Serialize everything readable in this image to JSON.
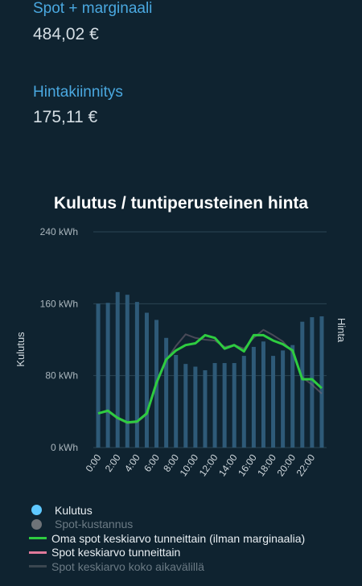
{
  "summary": [
    {
      "label": "Spot + marginaali",
      "value": "484,02 €"
    },
    {
      "label": "Hintakiinnitys",
      "value": "175,11 €"
    }
  ],
  "colors": {
    "background": "#0f2330",
    "label_blue": "#4aa8e0",
    "bar": "#2e5a78",
    "own_spot_line": "#2ecc40",
    "spot_line": "#e07a9a",
    "grid": "#2b4453"
  },
  "chart_data": {
    "type": "bar",
    "title": "Kulutus / tuntiperusteinen hinta",
    "ylabel": "Kulutus",
    "y2label": "Hinta",
    "ylim": [
      0,
      240
    ],
    "y_ticks": [
      "0 kWh",
      "80 kWh",
      "160 kWh",
      "240 kWh"
    ],
    "y_tick_values": [
      0,
      80,
      160,
      240
    ],
    "x_tick_labels": [
      "0:00",
      "2:00",
      "4:00",
      "6:00",
      "8:00",
      "10:00",
      "12:00",
      "14:00",
      "16:00",
      "18:00",
      "20:00",
      "22:00"
    ],
    "categories": [
      "0:00",
      "1:00",
      "2:00",
      "3:00",
      "4:00",
      "5:00",
      "6:00",
      "7:00",
      "8:00",
      "9:00",
      "10:00",
      "11:00",
      "12:00",
      "13:00",
      "14:00",
      "15:00",
      "16:00",
      "17:00",
      "18:00",
      "19:00",
      "20:00",
      "21:00",
      "22:00",
      "23:00"
    ],
    "series": [
      {
        "name": "Kulutus",
        "type": "bar",
        "values": [
          160,
          161,
          173,
          170,
          162,
          150,
          142,
          122,
          103,
          93,
          90,
          86,
          94,
          94,
          94,
          102,
          112,
          118,
          102,
          108,
          114,
          140,
          145,
          146
        ]
      },
      {
        "name": "Oma spot keskiarvo tunneittain (ilman marginaalia)",
        "type": "line",
        "values": [
          38,
          41,
          33,
          28,
          29,
          38,
          72,
          98,
          108,
          114,
          116,
          125,
          122,
          110,
          114,
          107,
          125,
          125,
          119,
          115,
          108,
          76,
          76,
          66
        ]
      },
      {
        "name": "Spot keskiarvo tunneittain",
        "type": "line",
        "values": [
          38,
          40,
          32,
          27,
          28,
          37,
          71,
          97,
          113,
          126,
          122,
          120,
          119,
          112,
          114,
          110,
          122,
          131,
          125,
          118,
          106,
          78,
          70,
          60
        ]
      }
    ],
    "legend": [
      {
        "name": "Kulutus",
        "kind": "dot",
        "color": "#5ec8ff",
        "dim": false
      },
      {
        "name": "Spot-kustannus",
        "kind": "dot",
        "color": "#6e7378",
        "dim": true
      },
      {
        "name": "Oma spot keskiarvo tunneittain (ilman marginaalia)",
        "kind": "line",
        "color": "#2ecc40",
        "dim": false
      },
      {
        "name": "Spot keskiarvo tunneittain",
        "kind": "line",
        "color": "#e07a9a",
        "dim": false
      },
      {
        "name": "Spot keskiarvo koko aikavälillä",
        "kind": "line",
        "color": "#3a4750",
        "dim": true
      }
    ],
    "legend_position": "bottom-left",
    "grid": true
  }
}
